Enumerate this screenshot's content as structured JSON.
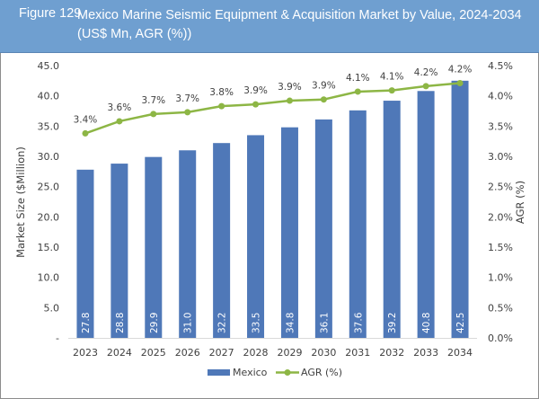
{
  "figure": {
    "number": "Figure 129",
    "title": "Mexico Marine Seismic Equipment & Acquisition Market by Value, 2024-2034 (US$ Mn, AGR (%))"
  },
  "colors": {
    "header_bg": "#6f9fd0",
    "bar": "#4f78b8",
    "line": "#8db645",
    "text": "#404040"
  },
  "chart_data": {
    "type": "bar",
    "title": "Mexico Marine Seismic Equipment & Acquisition Market by Value, 2024-2034 (US$ Mn, AGR (%))",
    "categories": [
      "2023",
      "2024",
      "2025",
      "2026",
      "2027",
      "2028",
      "2029",
      "2030",
      "2031",
      "2032",
      "2033",
      "2034"
    ],
    "series": [
      {
        "name": "Mexico",
        "type": "bar",
        "axis": "left",
        "values": [
          27.8,
          28.8,
          29.9,
          31.0,
          32.2,
          33.5,
          34.8,
          36.1,
          37.6,
          39.2,
          40.8,
          42.5
        ],
        "labels": [
          "27.8",
          "28.8",
          "29.9",
          "31.0",
          "32.2",
          "33.5",
          "34.8",
          "36.1",
          "37.6",
          "39.2",
          "40.8",
          "42.5"
        ]
      },
      {
        "name": "AGR (%)",
        "type": "line",
        "axis": "right",
        "values": [
          3.38,
          3.58,
          3.7,
          3.73,
          3.83,
          3.86,
          3.92,
          3.94,
          4.07,
          4.09,
          4.16,
          4.21
        ],
        "labels": [
          "3.4%",
          "3.6%",
          "3.7%",
          "3.7%",
          "3.8%",
          "3.9%",
          "3.9%",
          "3.9%",
          "4.1%",
          "4.1%",
          "4.2%",
          "4.2%"
        ]
      }
    ],
    "xlabel": "",
    "ylabel": "Market Size ($Million)",
    "y2label": "AGR (%)",
    "ylim": [
      0,
      45
    ],
    "y2lim": [
      0,
      4.5
    ],
    "yticks": [
      "-",
      "5.0",
      "10.0",
      "15.0",
      "20.0",
      "25.0",
      "30.0",
      "35.0",
      "40.0",
      "45.0"
    ],
    "y2ticks": [
      "0.0%",
      "0.5%",
      "1.0%",
      "1.5%",
      "2.0%",
      "2.5%",
      "3.0%",
      "3.5%",
      "4.0%",
      "4.5%"
    ],
    "grid": false,
    "legend": {
      "position": "bottom",
      "entries": [
        "Mexico",
        "AGR (%)"
      ]
    }
  }
}
